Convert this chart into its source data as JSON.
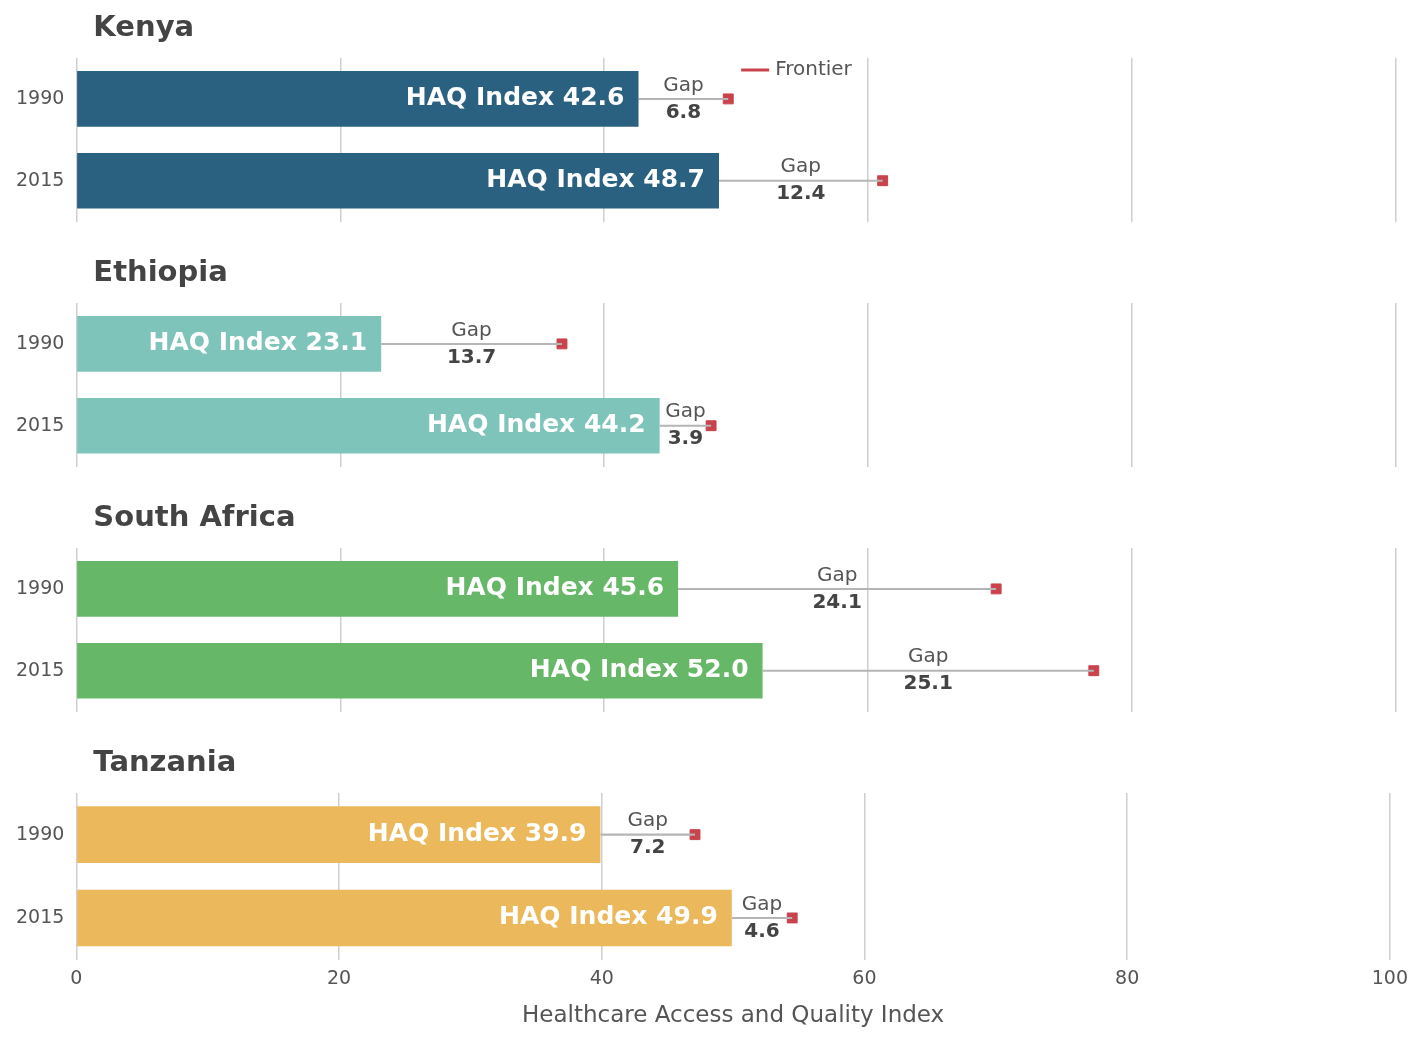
{
  "chart_data": [
    {
      "type": "bar",
      "title": "Kenya",
      "orientation": "horizontal",
      "stacked": true,
      "categories": [
        "1990",
        "2015"
      ],
      "xlim": [
        0,
        100
      ],
      "xticks": [
        0,
        20,
        40,
        60,
        80,
        100
      ],
      "grid": "x",
      "tick_labels": "y",
      "legend": "top",
      "series": [
        {
          "color": "#2b6180",
          "values": [
            42.6,
            48.7
          ],
          "value_labels": [
            "HAQ Index 42.6",
            "HAQ Index 48.7"
          ]
        },
        {
          "color": "#b5b5b5",
          "values": [
            6.8,
            12.4
          ],
          "value_labels": [
            "Gap\n6.8",
            "Gap\n12.4"
          ]
        },
        {
          "type": "scatter",
          "name": "Frontier",
          "color": "#c8434c",
          "values": [
            49.4,
            61.1
          ]
        }
      ]
    },
    {
      "type": "bar",
      "title": "Ethiopia",
      "orientation": "horizontal",
      "stacked": true,
      "categories": [
        "1990",
        "2015"
      ],
      "xlim": [
        0,
        100
      ],
      "xticks": [
        0,
        20,
        40,
        60,
        80,
        100
      ],
      "grid": "x",
      "tick_labels": "y",
      "series": [
        {
          "color": "#7fc4bb",
          "values": [
            23.1,
            44.2
          ],
          "value_labels": [
            "HAQ Index 23.1",
            "HAQ Index 44.2"
          ]
        },
        {
          "color": "#b5b5b5",
          "values": [
            13.7,
            3.9
          ],
          "value_labels": [
            "Gap\n13.7",
            "Gap\n3.9"
          ]
        },
        {
          "type": "scatter",
          "color": "#c8434c",
          "values": [
            36.8,
            48.1
          ]
        }
      ]
    },
    {
      "type": "bar",
      "title": "South Africa",
      "orientation": "horizontal",
      "stacked": true,
      "categories": [
        "1990",
        "2015"
      ],
      "xlim": [
        0,
        100
      ],
      "xticks": [
        0,
        20,
        40,
        60,
        80,
        100
      ],
      "grid": "x",
      "tick_labels": "y",
      "series": [
        {
          "color": "#66b767",
          "values": [
            45.6,
            52.0
          ],
          "value_labels": [
            "HAQ Index 45.6",
            "HAQ Index 52.0"
          ]
        },
        {
          "color": "#b5b5b5",
          "values": [
            24.1,
            25.1
          ],
          "value_labels": [
            "Gap\n24.1",
            "Gap\n25.1"
          ]
        },
        {
          "type": "scatter",
          "color": "#c8434c",
          "values": [
            69.7,
            77.1
          ]
        }
      ]
    },
    {
      "type": "bar",
      "title": "Tanzania",
      "orientation": "horizontal",
      "stacked": true,
      "categories": [
        "1990",
        "2015"
      ],
      "xlim": [
        0,
        100
      ],
      "xticks": [
        0,
        20,
        40,
        60,
        80,
        100
      ],
      "grid": "x",
      "xlabel": "Healthcare Access and Quality Index",
      "series": [
        {
          "color": "#ecb85c",
          "values": [
            39.9,
            49.9
          ],
          "value_labels": [
            "HAQ Index 39.9",
            "HAQ Index 49.9"
          ]
        },
        {
          "color": "#b5b5b5",
          "values": [
            7.2,
            4.6
          ],
          "value_labels": [
            "Gap\n7.2",
            "Gap\n4.6"
          ]
        },
        {
          "type": "scatter",
          "color": "#c8434c",
          "values": [
            47.1,
            54.5
          ]
        }
      ]
    }
  ]
}
